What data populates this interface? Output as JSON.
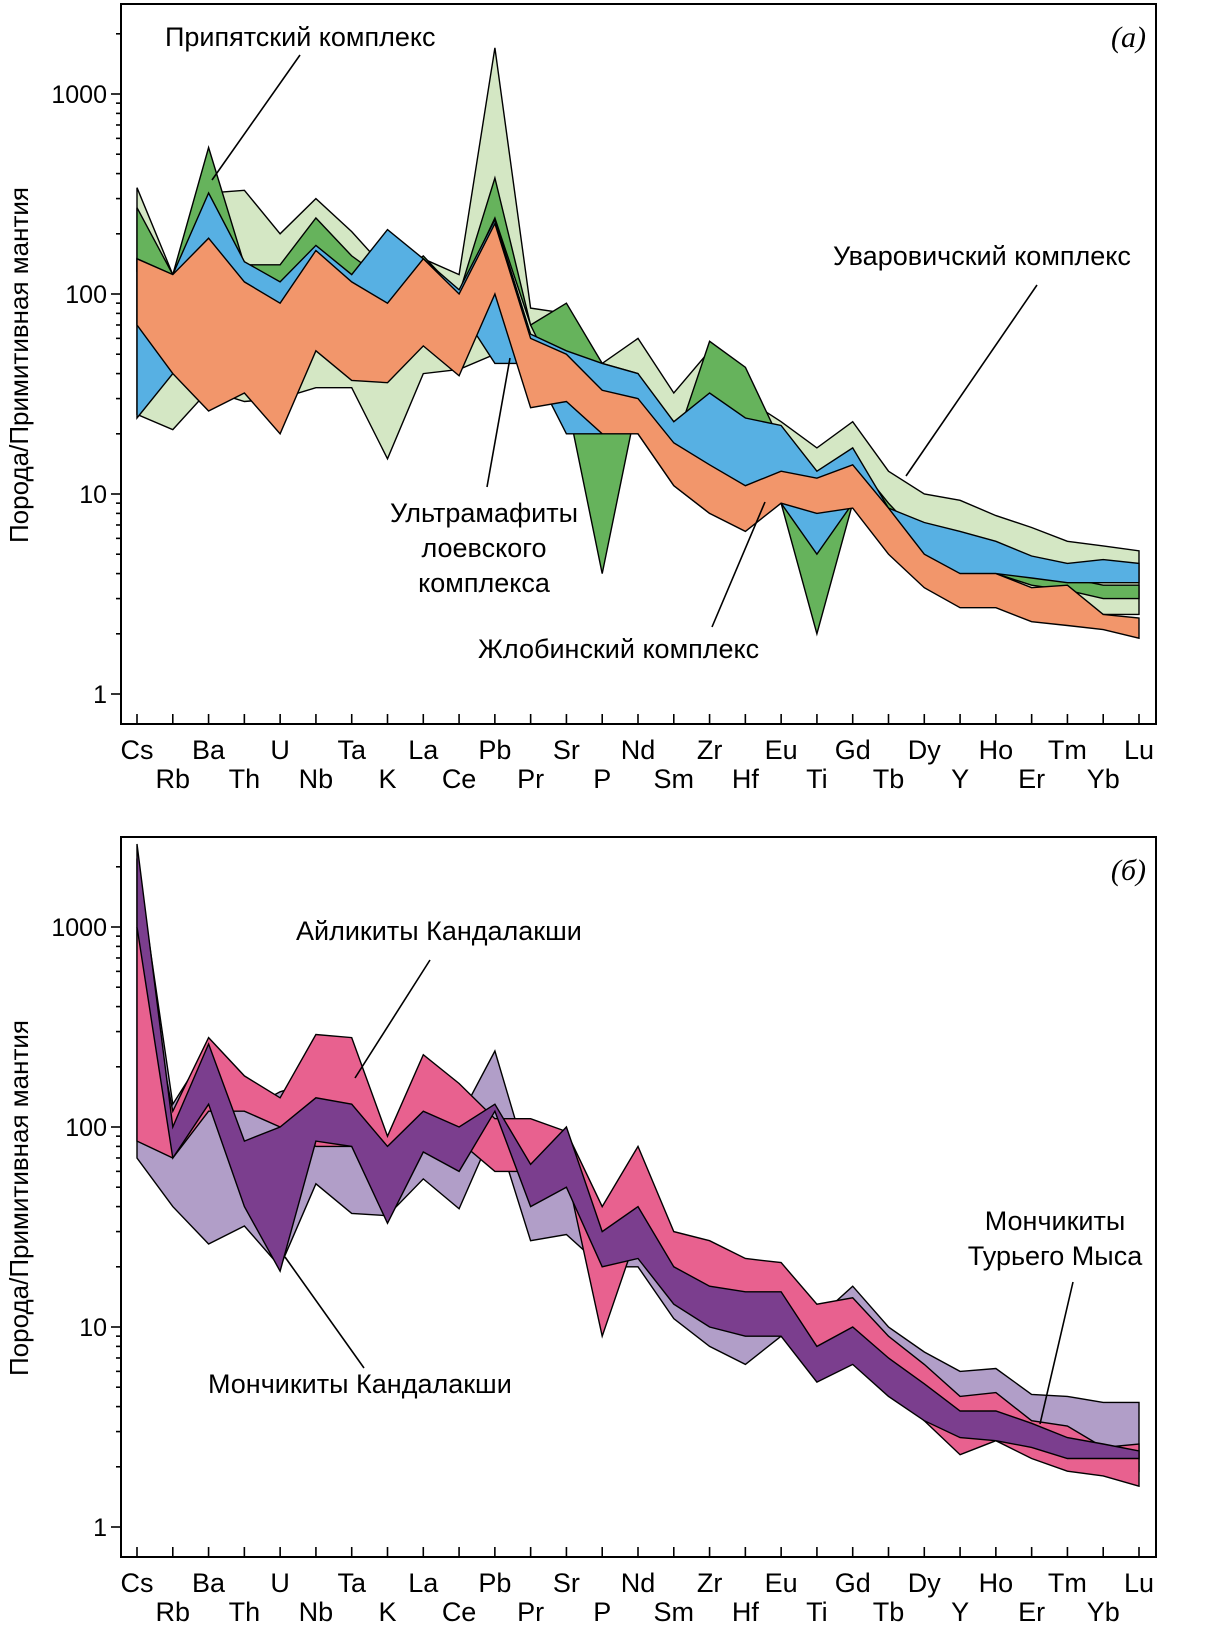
{
  "chart_data": [
    {
      "type": "area",
      "panel_label": "(а)",
      "ylabel": "Порода/Примитивная мантия",
      "yscale": "log",
      "ylim": [
        1,
        2500
      ],
      "yticks": [
        1,
        10,
        100,
        1000
      ],
      "ytick_labels": [
        "1",
        "10",
        "100",
        "1000"
      ],
      "categories": [
        "Cs",
        "Rb",
        "Ba",
        "Th",
        "U",
        "Nb",
        "Ta",
        "K",
        "La",
        "Ce",
        "Pb",
        "Pr",
        "Sr",
        "P",
        "Nd",
        "Sm",
        "Zr",
        "Hf",
        "Eu",
        "Ti",
        "Gd",
        "Tb",
        "Dy",
        "Y",
        "Ho",
        "Er",
        "Tm",
        "Yb",
        "Lu"
      ],
      "series": [
        {
          "name": "Уваровичский комплекс",
          "color": "#d4e7c4",
          "max": [
            340,
            125,
            320,
            330,
            200,
            300,
            205,
            130,
            150,
            125,
            1700,
            85,
            80,
            45,
            60,
            32,
            52,
            30,
            23,
            17,
            23,
            13,
            10,
            9.3,
            7.8,
            6.8,
            5.8,
            5.5,
            5.2
          ],
          "min": [
            25,
            21,
            33,
            29,
            30,
            34,
            34,
            15,
            40,
            42,
            50,
            45,
            21,
            20,
            20,
            15,
            16,
            13,
            11,
            9,
            9,
            6,
            4,
            3.5,
            3.5,
            3.4,
            3,
            2.5,
            2.5
          ]
        },
        {
          "name": "Припятский комплекс",
          "color": "#66b35c",
          "max": [
            270,
            125,
            540,
            140,
            140,
            240,
            155,
            115,
            155,
            100,
            380,
            70,
            90,
            45,
            40,
            17,
            58,
            43,
            18,
            12,
            15,
            9,
            5.8,
            5.6,
            4.4,
            4.0,
            3.8,
            3.5,
            3.5
          ],
          "min": [
            130,
            125,
            140,
            115,
            100,
            140,
            110,
            95,
            125,
            100,
            240,
            70,
            30,
            4,
            30,
            17,
            20,
            13,
            9,
            2,
            9,
            7,
            4.8,
            4.2,
            4.0,
            3.5,
            3.3,
            3.0,
            3.0
          ]
        },
        {
          "name": "Ультрамафиты лоевского комплекса",
          "color": "#57b0e3",
          "max": [
            150,
            125,
            320,
            145,
            115,
            175,
            125,
            210,
            150,
            105,
            235,
            63,
            52,
            45,
            40,
            23,
            32,
            24,
            22,
            13,
            17,
            8.5,
            7.2,
            6.5,
            5.8,
            4.9,
            4.5,
            4.7,
            4.5
          ],
          "min": [
            24,
            40,
            90,
            85,
            70,
            100,
            90,
            85,
            110,
            85,
            45,
            45,
            20,
            20,
            20,
            11,
            8,
            7,
            9,
            5,
            9,
            6,
            4.4,
            4.0,
            4.0,
            3.8,
            3.6,
            3.6,
            3.6
          ]
        },
        {
          "name": "Жлобинский комплекс",
          "color": "#f2966b",
          "max": [
            150,
            125,
            190,
            115,
            90,
            165,
            115,
            90,
            150,
            100,
            225,
            60,
            50,
            33,
            30,
            18,
            14,
            11,
            13,
            12,
            14,
            8.5,
            5.0,
            4.0,
            4.0,
            3.4,
            3.5,
            2.5,
            2.4
          ],
          "min": [
            70,
            40,
            26,
            32,
            20,
            52,
            37,
            36,
            55,
            39,
            100,
            27,
            29,
            20,
            20,
            11,
            8,
            6.5,
            9,
            8,
            8.5,
            5.0,
            3.4,
            2.7,
            2.7,
            2.3,
            2.2,
            2.1,
            1.9
          ]
        }
      ],
      "annotations": [
        {
          "text": "Припятский комплекс"
        },
        {
          "text": "Уваровичский комплекс"
        },
        {
          "text": "Ультрамафиты"
        },
        {
          "text": "лоевского"
        },
        {
          "text": "комплекса"
        },
        {
          "text": "Жлобинский комплекс"
        }
      ]
    },
    {
      "type": "area",
      "panel_label": "(б)",
      "ylabel": "Порода/Примитивная мантия",
      "yscale": "log",
      "ylim": [
        1,
        2500
      ],
      "yticks": [
        1,
        10,
        100,
        1000
      ],
      "ytick_labels": [
        "1",
        "10",
        "100",
        "1000"
      ],
      "categories": [
        "Cs",
        "Rb",
        "Ba",
        "Th",
        "U",
        "Nb",
        "Ta",
        "K",
        "La",
        "Ce",
        "Pb",
        "Pr",
        "Sr",
        "P",
        "Nd",
        "Sm",
        "Zr",
        "Hf",
        "Eu",
        "Ti",
        "Gd",
        "Tb",
        "Dy",
        "Y",
        "Ho",
        "Er",
        "Tm",
        "Yb",
        "Lu"
      ],
      "series": [
        {
          "name": "Мончикиты Турьего Мыса",
          "color": "#b19ec8",
          "max": [
            2200,
            130,
            250,
            120,
            150,
            170,
            140,
            65,
            150,
            110,
            240,
            60,
            95,
            35,
            40,
            20,
            16,
            15,
            13,
            11,
            16,
            10,
            7.5,
            6.0,
            6.2,
            4.6,
            4.5,
            4.2,
            4.2
          ],
          "min": [
            70,
            40,
            26,
            32,
            20,
            52,
            37,
            36,
            55,
            39,
            100,
            27,
            29,
            20,
            20,
            11,
            8,
            6.5,
            9,
            8,
            8.5,
            5.0,
            3.4,
            2.7,
            2.7,
            2.3,
            2.2,
            2.1,
            1.9
          ]
        },
        {
          "name": "Айликиты Кандалакши",
          "color": "#e8618f",
          "max": [
            1000,
            120,
            280,
            180,
            140,
            290,
            280,
            90,
            230,
            165,
            110,
            110,
            95,
            40,
            80,
            30,
            27,
            22,
            21,
            13,
            14,
            9,
            6.5,
            4.5,
            4.7,
            3.4,
            3.2,
            2.5,
            2.6
          ],
          "min": [
            85,
            70,
            120,
            120,
            100,
            80,
            80,
            65,
            100,
            85,
            60,
            60,
            60,
            9,
            30,
            20,
            12,
            10,
            9,
            6,
            8,
            5,
            3.4,
            2.3,
            2.7,
            2.2,
            1.9,
            1.8,
            1.6
          ]
        },
        {
          "name": "Мончикиты Кандалакши",
          "color": "#7b3e8e",
          "max": [
            2600,
            100,
            260,
            85,
            100,
            140,
            130,
            80,
            120,
            100,
            130,
            65,
            100,
            30,
            40,
            20,
            16,
            15,
            15,
            8,
            10,
            7,
            5.2,
            3.8,
            3.8,
            3.3,
            2.8,
            2.6,
            2.4
          ],
          "min": [
            1000,
            70,
            130,
            40,
            19,
            85,
            80,
            33,
            75,
            60,
            120,
            40,
            50,
            20,
            22,
            13,
            10,
            9,
            9,
            5.3,
            6.5,
            4.5,
            3.4,
            2.8,
            2.7,
            2.5,
            2.2,
            2.2,
            2.2
          ]
        }
      ],
      "annotations": [
        {
          "text": "Айликиты Кандалакши"
        },
        {
          "text": "Мончикиты"
        },
        {
          "text": "Турьего Мыса"
        },
        {
          "text": "Мончикиты Кандалакши"
        }
      ]
    }
  ]
}
